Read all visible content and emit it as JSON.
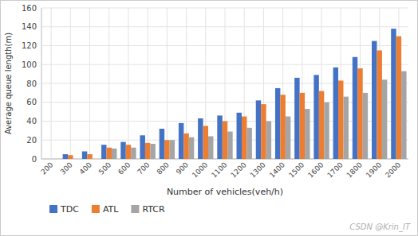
{
  "chart_data": {
    "type": "bar",
    "categories": [
      200,
      300,
      400,
      500,
      600,
      700,
      800,
      900,
      1000,
      1100,
      1200,
      1300,
      1400,
      1500,
      1600,
      1700,
      1800,
      1900,
      2000
    ],
    "series": [
      {
        "name": "TDC",
        "color": "#4472c4",
        "values": [
          0,
          5,
          8,
          15,
          18,
          25,
          32,
          38,
          43,
          46,
          49,
          62,
          75,
          86,
          89,
          97,
          108,
          125,
          138
        ]
      },
      {
        "name": "ATL",
        "color": "#ed7d31",
        "values": [
          0,
          4,
          5,
          12,
          15,
          17,
          20,
          27,
          35,
          40,
          45,
          58,
          68,
          70,
          72,
          83,
          96,
          115,
          130
        ]
      },
      {
        "name": "RTCR",
        "color": "#a5a5a5",
        "values": [
          0,
          0,
          0,
          11,
          12,
          16,
          20,
          23,
          24,
          29,
          33,
          40,
          45,
          53,
          60,
          66,
          70,
          84,
          93
        ]
      }
    ],
    "x_label": "Number of vehicles(veh/h)",
    "y_label": "Average queue length(m)",
    "ylim": [
      0,
      160
    ],
    "yticks": [
      0,
      20,
      40,
      60,
      80,
      100,
      120,
      140,
      160
    ],
    "grid": true,
    "legend": "bottom",
    "annotations": [
      "CSDN @Krin_IT"
    ]
  }
}
